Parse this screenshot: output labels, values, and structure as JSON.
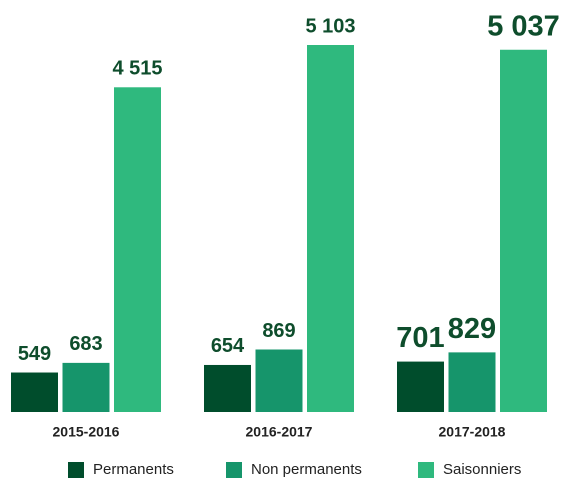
{
  "chart_data": {
    "type": "bar",
    "categories": [
      "2015-2016",
      "2016-2017",
      "2017-2018"
    ],
    "series": [
      {
        "name": "Permanents",
        "color": "#004d2c",
        "values": [
          549,
          654,
          701
        ],
        "value_labels": [
          "549",
          "654",
          "701"
        ]
      },
      {
        "name": "Non permanents",
        "color": "#16956b",
        "values": [
          683,
          869,
          829
        ],
        "value_labels": [
          "683",
          "869",
          "829"
        ]
      },
      {
        "name": "Saisonniers",
        "color": "#2fb97e",
        "values": [
          4515,
          5103,
          5037
        ],
        "value_labels": [
          "4 515",
          "5 103",
          "5 037"
        ]
      }
    ]
  }
}
